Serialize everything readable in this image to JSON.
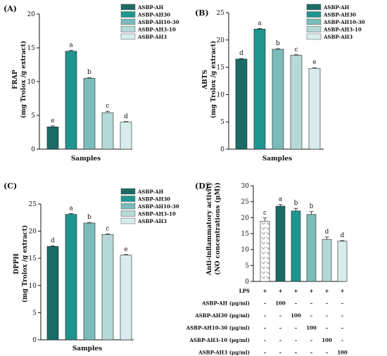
{
  "chart_data": [
    {
      "type": "bar",
      "panel": "(A)",
      "ylabel_lines": [
        "FRAP",
        "(mg Trolox /g extract)"
      ],
      "xlabel": "Samples",
      "ylim": [
        0,
        20
      ],
      "yticks": [
        0,
        5,
        10,
        15,
        20
      ],
      "legend": [
        "ASBP-AH",
        "ASBP-AH30",
        "ASBP-AH10-30",
        "ASBP-AH3-10",
        "ASBP-AH3"
      ],
      "categories": [
        "ASBP-AH",
        "ASBP-AH30",
        "ASBP-AH10-30",
        "ASBP-AH3-10",
        "ASBP-AH3"
      ],
      "values": [
        3.3,
        14.5,
        10.5,
        5.4,
        4.0
      ],
      "errors": [
        0.15,
        0.12,
        0.1,
        0.2,
        0.08
      ],
      "letters": [
        "e",
        "a",
        "b",
        "c",
        "d"
      ]
    },
    {
      "type": "bar",
      "panel": "(B)",
      "ylabel_lines": [
        "ABTS",
        "(mg Trolox /g extract)"
      ],
      "xlabel": "Samples",
      "ylim": [
        0,
        25
      ],
      "yticks": [
        0,
        5,
        10,
        15,
        20,
        25
      ],
      "legend": [
        "ASBP-AH",
        "ASBP-AH30",
        "ASBP-AH10-30",
        "ASBP-AH3-10",
        "ASBP-AH3"
      ],
      "categories": [
        "ASBP-AH",
        "ASBP-AH30",
        "ASBP-AH10-30",
        "ASBP-AH3-10",
        "ASBP-AH3"
      ],
      "values": [
        16.5,
        22.0,
        18.3,
        17.2,
        14.8
      ],
      "errors": [
        0.1,
        0.1,
        0.1,
        0.1,
        0.12
      ],
      "letters": [
        "d",
        "a",
        "b",
        "c",
        "e"
      ]
    },
    {
      "type": "bar",
      "panel": "(C)",
      "ylabel_lines": [
        "DPPH",
        "(mg Trolox /g extract)"
      ],
      "xlabel": "Samples",
      "ylim": [
        0,
        25
      ],
      "yticks": [
        0,
        5,
        10,
        15,
        20,
        25
      ],
      "legend": [
        "ASBP-AH",
        "ASBP-AH30",
        "ASBP-AH10-30",
        "ASBP-AH3-10",
        "ASBP-AH3"
      ],
      "categories": [
        "ASBP-AH",
        "ASBP-AH30",
        "ASBP-AH10-30",
        "ASBP-AH3-10",
        "ASBP-AH3"
      ],
      "values": [
        17.2,
        23.1,
        21.5,
        19.4,
        15.6
      ],
      "errors": [
        0.12,
        0.15,
        0.1,
        0.1,
        0.1
      ],
      "letters": [
        "d",
        "a",
        "b",
        "c",
        "e"
      ]
    },
    {
      "type": "bar",
      "panel": "(D)",
      "ylabel_lines": [
        "Anti-inflammatory activity",
        "(NO concentrations (μM))"
      ],
      "ylim": [
        0,
        30
      ],
      "yticks": [
        0,
        5,
        10,
        15,
        20,
        25,
        30
      ],
      "categories": [
        "LPS",
        "ASBP-AH",
        "ASBP-AH30",
        "ASBP-AH10-30",
        "ASBP-AH3-10",
        "ASBP-AH3"
      ],
      "values": [
        18.9,
        23.6,
        22.1,
        21.0,
        13.2,
        12.6
      ],
      "errors": [
        1.0,
        0.5,
        0.8,
        0.9,
        0.7,
        0.2
      ],
      "letters": [
        "c",
        "a",
        "b",
        "b",
        "d",
        "d"
      ],
      "treatment_table": {
        "rows": [
          {
            "label": "LPS",
            "cells": [
              "+",
              "+",
              "+",
              "+",
              "+",
              "+"
            ]
          },
          {
            "label": "ASBP-AH (μg/ml)",
            "cells": [
              "–",
              "100",
              "–",
              "–",
              "–",
              "–"
            ]
          },
          {
            "label": "ASBP-AH30 (μg/ml)",
            "cells": [
              "–",
              "–",
              "100",
              "–",
              "–",
              "–"
            ]
          },
          {
            "label": "ASBP-AH10-30 (μg/ml)",
            "cells": [
              "–",
              "–",
              "–",
              "100",
              "–",
              "–"
            ]
          },
          {
            "label": "ASBP-AH3-10 (μg/ml)",
            "cells": [
              "–",
              "–",
              "–",
              "–",
              "100",
              "–"
            ]
          },
          {
            "label": "ASBP-AH3 (μg/ml)",
            "cells": [
              "–",
              "–",
              "–",
              "–",
              "–",
              "100"
            ]
          }
        ]
      }
    }
  ],
  "colors": {
    "series": [
      "#1b6b66",
      "#1f9590",
      "#7bbcba",
      "#b5d9d8",
      "#d9ecec"
    ],
    "axis": "#111111"
  }
}
